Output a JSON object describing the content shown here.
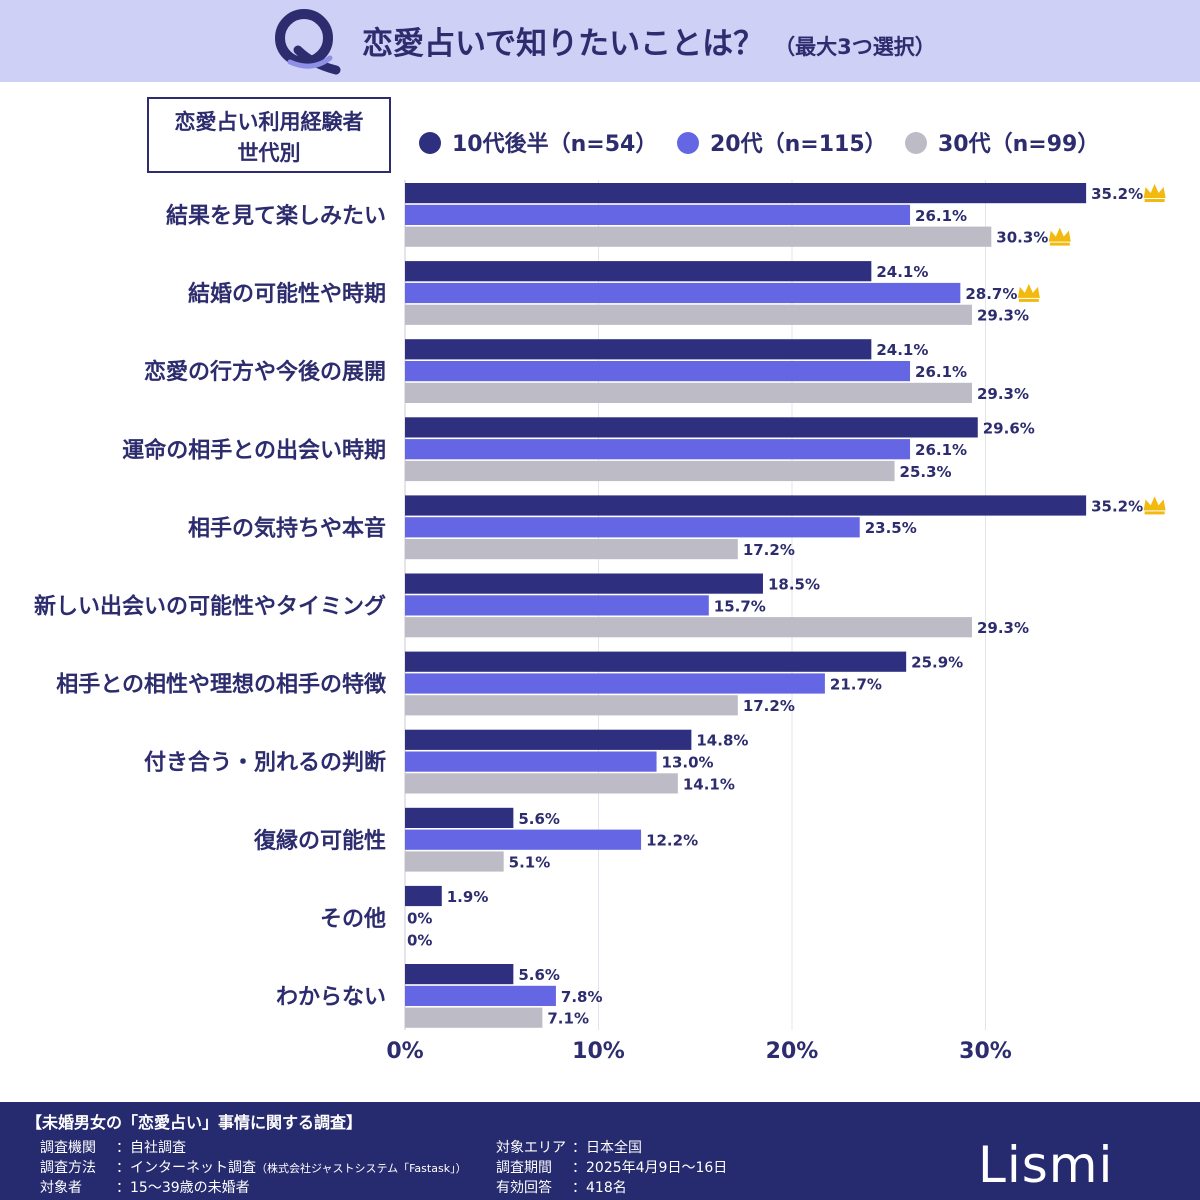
{
  "header": {
    "q_letter": "Q",
    "title": "恋愛占いで知りたいことは？",
    "note": "（最大3つ選択）"
  },
  "legend": {
    "box_line1": "恋愛占い利用経験者",
    "box_line2": "世代別"
  },
  "colors": {
    "header_bg": "#cfd0f5",
    "footer_bg": "#262a6e",
    "text": "#2c2c6e",
    "crown": "#f2b90f"
  },
  "chart_data": {
    "type": "bar",
    "orientation": "horizontal",
    "categories": [
      "結果を見て楽しみたい",
      "結婚の可能性や時期",
      "恋愛の行方や今後の展開",
      "運命の相手との出会い時期",
      "相手の気持ちや本音",
      "新しい出会いの可能性やタイミング",
      "相手との相性や理想の相手の特徴",
      "付き合う・別れるの判断",
      "復縁の可能性",
      "その他",
      "わからない"
    ],
    "series": [
      {
        "name": "10代後半（n=54）",
        "color": "#2e2f7e",
        "values": [
          35.2,
          24.1,
          24.1,
          29.6,
          35.2,
          18.5,
          25.9,
          14.8,
          5.6,
          1.9,
          5.6
        ],
        "labels": [
          "35.2%",
          "24.1%",
          "24.1%",
          "29.6%",
          "35.2%",
          "18.5%",
          "25.9%",
          "14.8%",
          "5.6%",
          "1.9%",
          "5.6%"
        ],
        "top": [
          true,
          false,
          false,
          false,
          true,
          false,
          false,
          false,
          false,
          false,
          false
        ]
      },
      {
        "name": "20代（n=115）",
        "color": "#6466e3",
        "values": [
          26.1,
          28.7,
          26.1,
          26.1,
          23.5,
          15.7,
          21.7,
          13.0,
          12.2,
          0,
          7.8
        ],
        "labels": [
          "26.1%",
          "28.7%",
          "26.1%",
          "26.1%",
          "23.5%",
          "15.7%",
          "21.7%",
          "13.0%",
          "12.2%",
          "0%",
          "7.8%"
        ],
        "top": [
          false,
          true,
          false,
          false,
          false,
          false,
          false,
          false,
          false,
          false,
          false
        ]
      },
      {
        "name": "30代（n=99）",
        "color": "#bdbcc6",
        "values": [
          30.3,
          29.3,
          29.3,
          25.3,
          17.2,
          29.3,
          17.2,
          14.1,
          5.1,
          0,
          7.1
        ],
        "labels": [
          "30.3%",
          "29.3%",
          "29.3%",
          "25.3%",
          "17.2%",
          "29.3%",
          "17.2%",
          "14.1%",
          "5.1%",
          "0%",
          "7.1%"
        ],
        "top": [
          true,
          false,
          false,
          false,
          false,
          false,
          false,
          false,
          false,
          false,
          false
        ]
      }
    ],
    "xticks": [
      0,
      10,
      20,
      30
    ],
    "xtick_labels": [
      "0%",
      "10%",
      "20%",
      "30%"
    ],
    "xlim": [
      0,
      41
    ],
    "grid": true,
    "legend_position": "top"
  },
  "footer": {
    "survey_title": "【未婚男女の「恋愛占い」事情に関する調査】",
    "rows": [
      {
        "key": "調査機関",
        "value": "：自社調査"
      },
      {
        "key": "調査方法",
        "value": "：インターネット調査",
        "small": "（株式会社ジャストシステム「Fastask」）"
      },
      {
        "key": "対象者",
        "value": "：15〜39歳の未婚者"
      },
      {
        "key": "対象エリア",
        "value": "：日本全国"
      },
      {
        "key": "調査期間",
        "value": "：2025年4月9日〜16日"
      },
      {
        "key": "有効回答",
        "value": "：418名"
      }
    ],
    "brand": "Lismi"
  }
}
